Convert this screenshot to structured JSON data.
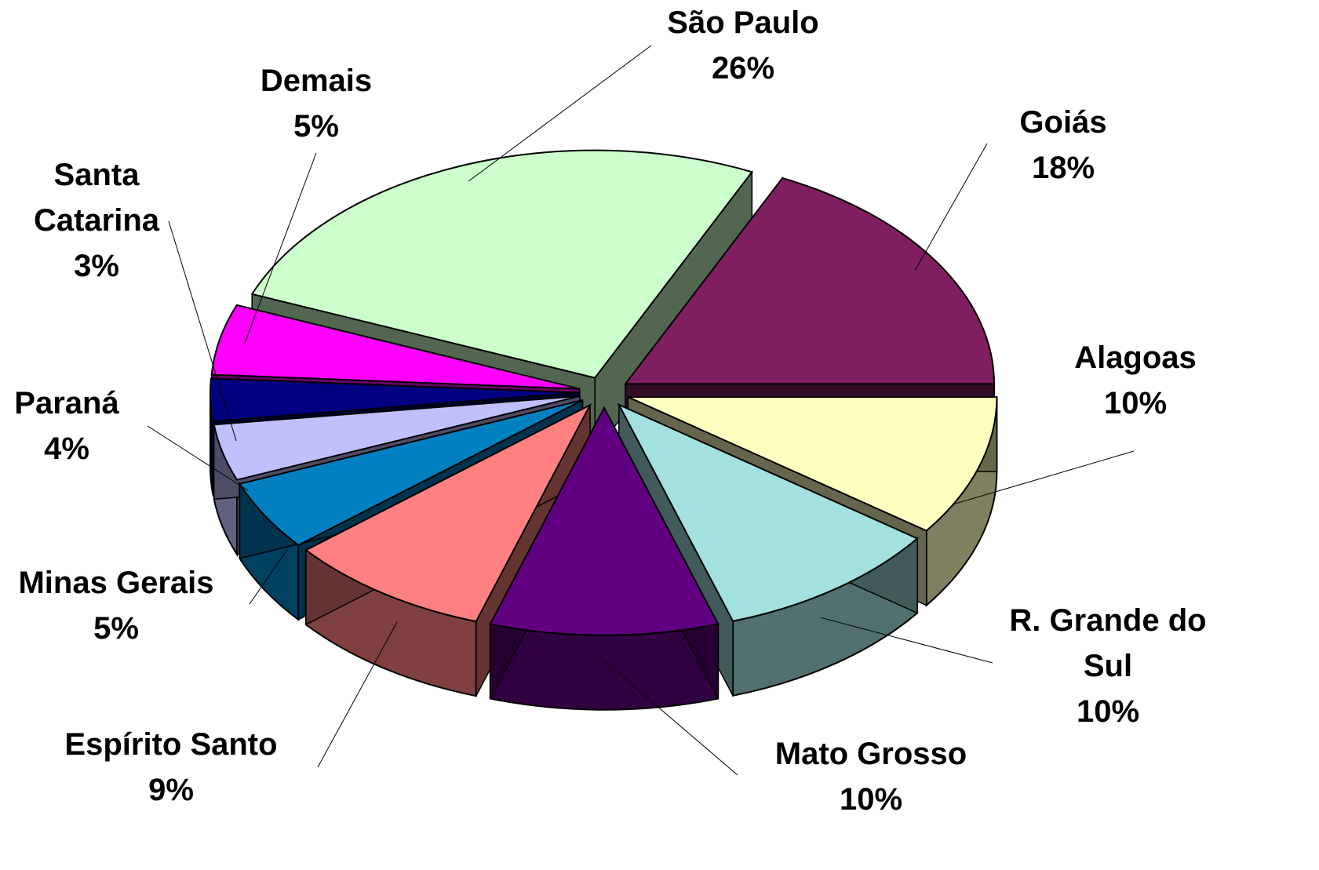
{
  "chart_data": {
    "type": "pie3d",
    "categories": [
      "São Paulo",
      "Goiás",
      "Alagoas",
      "R. Grande do Sul",
      "Mato Grosso",
      "Espírito Santo",
      "Minas Gerais",
      "Paraná",
      "Santa Catarina",
      "Demais"
    ],
    "values": [
      26,
      18,
      10,
      10,
      10,
      9,
      5,
      4,
      3,
      5
    ],
    "value_labels": [
      "26%",
      "18%",
      "10%",
      "10%",
      "10%",
      "9%",
      "5%",
      "4%",
      "3%",
      "5%"
    ],
    "colors": [
      "#ccffcc",
      "#7f1f5f",
      "#ffffc0",
      "#a3e0e0",
      "#600080",
      "#ff8080",
      "#0080c0",
      "#c0c0ff",
      "#000080",
      "#ff00ff"
    ]
  }
}
